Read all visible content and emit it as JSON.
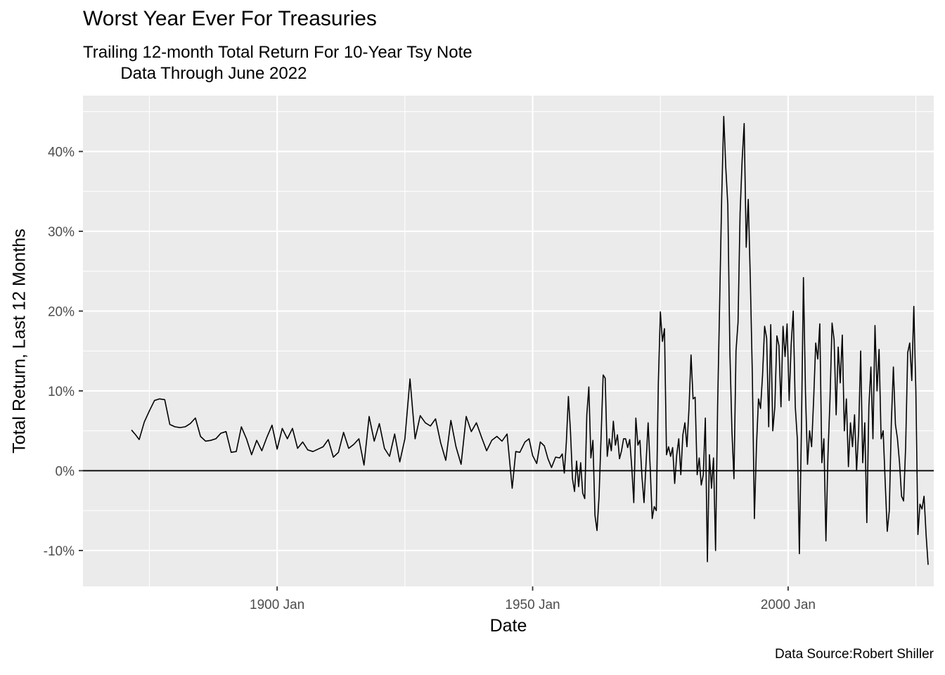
{
  "chart_data": {
    "type": "line",
    "title": "Worst Year Ever For Treasuries",
    "subtitle": "Trailing 12-month Total Return For 10-Year Tsy Note\n        Data Through June 2022",
    "caption": "Data Source:Robert Shiller",
    "xlabel": "Date",
    "ylabel": "Total Return, Last 12 Months",
    "xlim": [
      1862.0,
      2028.5
    ],
    "ylim": [
      -0.145,
      0.47
    ],
    "x_ticks": [
      {
        "value": 1900.0,
        "label": "1900 Jan"
      },
      {
        "value": 1950.0,
        "label": "1950 Jan"
      },
      {
        "value": 2000.0,
        "label": "2000 Jan"
      }
    ],
    "y_ticks": [
      {
        "value": -0.1,
        "label": "-10%"
      },
      {
        "value": 0.0,
        "label": "0%"
      },
      {
        "value": 0.1,
        "label": "10%"
      },
      {
        "value": 0.2,
        "label": "20%"
      },
      {
        "value": 0.3,
        "label": "30%"
      },
      {
        "value": 0.4,
        "label": "40%"
      }
    ],
    "hline": 0.0,
    "grid": true,
    "background": "#ebebeb",
    "line_color": "#000000",
    "series": [
      {
        "points": [
          [
            1871.5,
            0.051
          ],
          [
            1872.3,
            0.045
          ],
          [
            1873.0,
            0.039
          ],
          [
            1874.0,
            0.061
          ],
          [
            1875.0,
            0.075
          ],
          [
            1876.0,
            0.088
          ],
          [
            1877.0,
            0.09
          ],
          [
            1878.0,
            0.089
          ],
          [
            1879.0,
            0.058
          ],
          [
            1880.0,
            0.055
          ],
          [
            1881.0,
            0.054
          ],
          [
            1882.0,
            0.055
          ],
          [
            1883.0,
            0.059
          ],
          [
            1884.0,
            0.066
          ],
          [
            1885.0,
            0.043
          ],
          [
            1886.0,
            0.037
          ],
          [
            1887.0,
            0.038
          ],
          [
            1888.0,
            0.04
          ],
          [
            1889.0,
            0.047
          ],
          [
            1890.0,
            0.049
          ],
          [
            1891.0,
            0.023
          ],
          [
            1892.0,
            0.024
          ],
          [
            1893.0,
            0.055
          ],
          [
            1894.0,
            0.04
          ],
          [
            1895.0,
            0.02
          ],
          [
            1896.0,
            0.038
          ],
          [
            1897.0,
            0.025
          ],
          [
            1898.0,
            0.042
          ],
          [
            1899.0,
            0.057
          ],
          [
            1900.0,
            0.027
          ],
          [
            1901.0,
            0.053
          ],
          [
            1902.0,
            0.04
          ],
          [
            1903.0,
            0.053
          ],
          [
            1904.0,
            0.028
          ],
          [
            1905.0,
            0.036
          ],
          [
            1906.0,
            0.026
          ],
          [
            1907.0,
            0.024
          ],
          [
            1908.0,
            0.027
          ],
          [
            1909.0,
            0.03
          ],
          [
            1910.0,
            0.039
          ],
          [
            1911.0,
            0.017
          ],
          [
            1912.0,
            0.023
          ],
          [
            1913.0,
            0.048
          ],
          [
            1914.0,
            0.028
          ],
          [
            1915.0,
            0.033
          ],
          [
            1916.0,
            0.04
          ],
          [
            1917.0,
            0.007
          ],
          [
            1918.0,
            0.068
          ],
          [
            1919.0,
            0.037
          ],
          [
            1920.0,
            0.059
          ],
          [
            1921.0,
            0.028
          ],
          [
            1922.0,
            0.018
          ],
          [
            1923.0,
            0.046
          ],
          [
            1924.0,
            0.011
          ],
          [
            1925.0,
            0.04
          ],
          [
            1926.0,
            0.115
          ],
          [
            1927.0,
            0.04
          ],
          [
            1928.0,
            0.069
          ],
          [
            1929.0,
            0.06
          ],
          [
            1930.0,
            0.056
          ],
          [
            1931.0,
            0.065
          ],
          [
            1932.0,
            0.035
          ],
          [
            1933.0,
            0.013
          ],
          [
            1934.0,
            0.063
          ],
          [
            1935.0,
            0.03
          ],
          [
            1936.0,
            0.008
          ],
          [
            1937.0,
            0.068
          ],
          [
            1938.0,
            0.049
          ],
          [
            1939.0,
            0.06
          ],
          [
            1940.0,
            0.042
          ],
          [
            1941.0,
            0.025
          ],
          [
            1942.0,
            0.038
          ],
          [
            1943.0,
            0.043
          ],
          [
            1944.0,
            0.037
          ],
          [
            1945.0,
            0.046
          ],
          [
            1946.0,
            -0.022
          ],
          [
            1946.7,
            0.024
          ],
          [
            1947.5,
            0.023
          ],
          [
            1948.5,
            0.036
          ],
          [
            1949.3,
            0.04
          ],
          [
            1950.0,
            0.019
          ],
          [
            1950.8,
            0.009
          ],
          [
            1951.5,
            0.036
          ],
          [
            1952.3,
            0.031
          ],
          [
            1953.0,
            0.015
          ],
          [
            1953.7,
            0.004
          ],
          [
            1954.5,
            0.017
          ],
          [
            1955.3,
            0.016
          ],
          [
            1955.8,
            0.021
          ],
          [
            1956.2,
            -0.003
          ],
          [
            1956.6,
            0.036
          ],
          [
            1957.0,
            0.093
          ],
          [
            1957.4,
            0.05
          ],
          [
            1957.8,
            -0.01
          ],
          [
            1958.2,
            -0.026
          ],
          [
            1958.6,
            0.012
          ],
          [
            1959.0,
            -0.02
          ],
          [
            1959.4,
            0.01
          ],
          [
            1959.8,
            -0.028
          ],
          [
            1960.2,
            -0.035
          ],
          [
            1960.6,
            0.07
          ],
          [
            1961.0,
            0.105
          ],
          [
            1961.4,
            0.016
          ],
          [
            1961.8,
            0.038
          ],
          [
            1962.2,
            -0.056
          ],
          [
            1962.6,
            -0.075
          ],
          [
            1963.0,
            -0.032
          ],
          [
            1963.4,
            0.043
          ],
          [
            1963.8,
            0.12
          ],
          [
            1964.2,
            0.116
          ],
          [
            1964.6,
            0.018
          ],
          [
            1965.0,
            0.04
          ],
          [
            1965.4,
            0.025
          ],
          [
            1965.8,
            0.062
          ],
          [
            1966.2,
            0.032
          ],
          [
            1966.6,
            0.045
          ],
          [
            1967.0,
            0.015
          ],
          [
            1967.4,
            0.025
          ],
          [
            1967.8,
            0.04
          ],
          [
            1968.2,
            0.04
          ],
          [
            1968.6,
            0.029
          ],
          [
            1969.0,
            0.039
          ],
          [
            1969.4,
            0.004
          ],
          [
            1969.8,
            -0.04
          ],
          [
            1970.2,
            0.066
          ],
          [
            1970.6,
            0.032
          ],
          [
            1971.0,
            0.038
          ],
          [
            1971.4,
            -0.008
          ],
          [
            1971.8,
            -0.04
          ],
          [
            1972.2,
            0.01
          ],
          [
            1972.6,
            0.06
          ],
          [
            1973.0,
            0.005
          ],
          [
            1973.4,
            -0.06
          ],
          [
            1973.8,
            -0.045
          ],
          [
            1974.2,
            -0.05
          ],
          [
            1974.6,
            0.11
          ],
          [
            1975.0,
            0.199
          ],
          [
            1975.4,
            0.162
          ],
          [
            1975.8,
            0.178
          ],
          [
            1976.2,
            0.02
          ],
          [
            1976.6,
            0.03
          ],
          [
            1977.0,
            0.018
          ],
          [
            1977.4,
            0.029
          ],
          [
            1977.8,
            -0.016
          ],
          [
            1978.2,
            0.02
          ],
          [
            1978.6,
            0.04
          ],
          [
            1979.0,
            -0.005
          ],
          [
            1979.4,
            0.045
          ],
          [
            1979.8,
            0.06
          ],
          [
            1980.2,
            0.03
          ],
          [
            1980.6,
            0.078
          ],
          [
            1981.0,
            0.145
          ],
          [
            1981.4,
            0.09
          ],
          [
            1981.8,
            0.092
          ],
          [
            1982.2,
            -0.005
          ],
          [
            1982.6,
            0.016
          ],
          [
            1983.0,
            -0.018
          ],
          [
            1983.4,
            -0.005
          ],
          [
            1983.8,
            0.066
          ],
          [
            1984.2,
            -0.114
          ],
          [
            1984.6,
            0.02
          ],
          [
            1985.0,
            -0.022
          ],
          [
            1985.4,
            0.016
          ],
          [
            1985.8,
            -0.1
          ],
          [
            1986.2,
            0.08
          ],
          [
            1986.6,
            0.21
          ],
          [
            1987.0,
            0.342
          ],
          [
            1987.4,
            0.444
          ],
          [
            1987.8,
            0.38
          ],
          [
            1988.2,
            0.333
          ],
          [
            1988.6,
            0.15
          ],
          [
            1989.0,
            0.05
          ],
          [
            1989.4,
            -0.01
          ],
          [
            1989.8,
            0.15
          ],
          [
            1990.2,
            0.186
          ],
          [
            1990.6,
            0.323
          ],
          [
            1991.0,
            0.389
          ],
          [
            1991.4,
            0.435
          ],
          [
            1991.8,
            0.28
          ],
          [
            1992.2,
            0.34
          ],
          [
            1992.6,
            0.24
          ],
          [
            1993.0,
            0.12
          ],
          [
            1993.4,
            -0.06
          ],
          [
            1993.8,
            0.03
          ],
          [
            1994.2,
            0.09
          ],
          [
            1994.6,
            0.078
          ],
          [
            1995.0,
            0.12
          ],
          [
            1995.4,
            0.181
          ],
          [
            1995.8,
            0.166
          ],
          [
            1996.2,
            0.055
          ],
          [
            1996.6,
            0.183
          ],
          [
            1997.0,
            0.05
          ],
          [
            1997.4,
            0.08
          ],
          [
            1997.8,
            0.169
          ],
          [
            1998.2,
            0.157
          ],
          [
            1998.6,
            0.08
          ],
          [
            1999.0,
            0.181
          ],
          [
            1999.4,
            0.143
          ],
          [
            1999.8,
            0.184
          ],
          [
            2000.2,
            0.088
          ],
          [
            2000.6,
            0.158
          ],
          [
            2001.0,
            0.2
          ],
          [
            2001.4,
            0.08
          ],
          [
            2001.8,
            0.04
          ],
          [
            2002.2,
            -0.104
          ],
          [
            2002.6,
            0.05
          ],
          [
            2003.0,
            0.242
          ],
          [
            2003.4,
            0.098
          ],
          [
            2003.8,
            0.008
          ],
          [
            2004.2,
            0.05
          ],
          [
            2004.6,
            0.03
          ],
          [
            2005.0,
            0.09
          ],
          [
            2005.4,
            0.16
          ],
          [
            2005.8,
            0.14
          ],
          [
            2006.2,
            0.184
          ],
          [
            2006.6,
            0.01
          ],
          [
            2007.0,
            0.04
          ],
          [
            2007.4,
            -0.088
          ],
          [
            2007.8,
            0.02
          ],
          [
            2008.2,
            0.09
          ],
          [
            2008.6,
            0.185
          ],
          [
            2009.0,
            0.164
          ],
          [
            2009.4,
            0.07
          ],
          [
            2009.8,
            0.155
          ],
          [
            2010.2,
            0.11
          ],
          [
            2010.6,
            0.17
          ],
          [
            2011.0,
            0.05
          ],
          [
            2011.4,
            0.09
          ],
          [
            2011.8,
            0.005
          ],
          [
            2012.2,
            0.06
          ],
          [
            2012.6,
            0.03
          ],
          [
            2013.0,
            0.07
          ],
          [
            2013.4,
            0.0
          ],
          [
            2013.8,
            0.05
          ],
          [
            2014.2,
            0.15
          ],
          [
            2014.6,
            0.01
          ],
          [
            2015.0,
            0.06
          ],
          [
            2015.4,
            -0.065
          ],
          [
            2015.8,
            0.08
          ],
          [
            2016.2,
            0.13
          ],
          [
            2016.6,
            0.04
          ],
          [
            2017.0,
            0.182
          ],
          [
            2017.4,
            0.1
          ],
          [
            2017.8,
            0.152
          ],
          [
            2018.2,
            0.04
          ],
          [
            2018.6,
            0.05
          ],
          [
            2019.0,
            -0.015
          ],
          [
            2019.4,
            -0.076
          ],
          [
            2019.8,
            -0.05
          ],
          [
            2020.2,
            0.06
          ],
          [
            2020.6,
            0.13
          ],
          [
            2021.0,
            0.058
          ],
          [
            2021.4,
            0.04
          ],
          [
            2021.8,
            0.01
          ],
          [
            2022.2,
            -0.032
          ],
          [
            2022.6,
            -0.038
          ],
          [
            2023.0,
            0.03
          ],
          [
            2023.4,
            0.148
          ],
          [
            2023.8,
            0.16
          ],
          [
            2024.2,
            0.113
          ],
          [
            2024.6,
            0.206
          ],
          [
            2025.0,
            0.1
          ],
          [
            2025.4,
            -0.08
          ],
          [
            2025.8,
            -0.042
          ],
          [
            2026.2,
            -0.048
          ],
          [
            2026.6,
            -0.032
          ],
          [
            2027.0,
            -0.08
          ],
          [
            2027.4,
            -0.118
          ]
        ]
      }
    ]
  }
}
